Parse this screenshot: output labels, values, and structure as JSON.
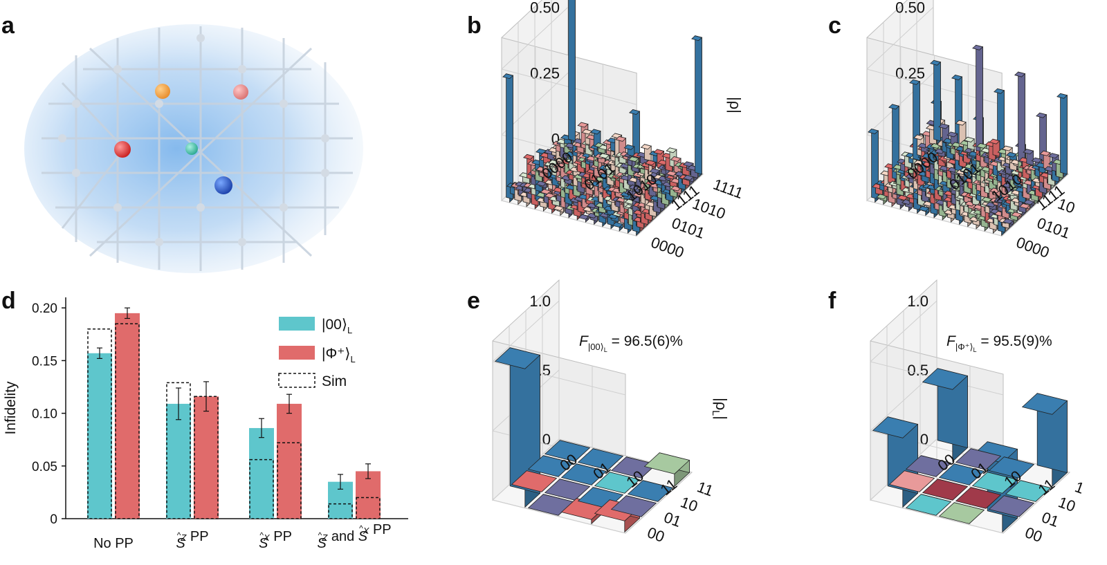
{
  "panels": {
    "a": {
      "label": "a"
    },
    "b": {
      "label": "b"
    },
    "c": {
      "label": "c"
    },
    "d": {
      "label": "d"
    },
    "e": {
      "label": "e"
    },
    "f": {
      "label": "f"
    }
  },
  "colors": {
    "teal": "#5ec6cc",
    "red": "#e06b6b",
    "blue": "#3a7eb0",
    "green": "#a7c9a0",
    "salmon": "#e89a9a",
    "purple": "#6f6f9f",
    "darkred": "#a03a4a",
    "grid": "#cfcfcf"
  },
  "matrix3d": {
    "b": {
      "zticks": [
        "0",
        "0.25",
        "0.50"
      ],
      "zlabel": "|ρ|",
      "row_ticks": [
        "0000",
        "0101",
        "1010",
        "1111"
      ],
      "col_ticks": [
        "1111",
        "1010",
        "0101",
        "0000"
      ]
    },
    "c": {
      "zticks": [
        "0",
        "0.25",
        "0.50"
      ],
      "row_ticks": [
        "0000",
        "0101",
        "1010",
        "1111"
      ],
      "col_ticks": [
        "10",
        "0101",
        "0000"
      ]
    },
    "e": {
      "zticks": [
        "0",
        "0.5",
        "1.0"
      ],
      "zlabel": "|ρ",
      "zlabel_sub": "L",
      "zlabel_end": "|",
      "row_ticks": [
        "00",
        "01",
        "10",
        "11"
      ],
      "col_ticks": [
        "11",
        "10",
        "01",
        "00"
      ],
      "fidelity_F": "F",
      "fidelity_sub": "|00⟩",
      "fidelity_sub2": "L",
      "fidelity_value": " = 96.5(6)%"
    },
    "f": {
      "zticks": [
        "0",
        "0.5",
        "1.0"
      ],
      "row_ticks": [
        "00",
        "01",
        "10",
        "11"
      ],
      "col_ticks": [
        "1",
        "10",
        "01",
        "00"
      ],
      "fidelity_F": "F",
      "fidelity_sub": "|Φ⁺⟩",
      "fidelity_sub2": "L",
      "fidelity_value": " = 95.5(9)%"
    }
  },
  "chart_data": {
    "type": "bar",
    "title": "",
    "xlabel": "",
    "ylabel": "Infidelity",
    "ylim": [
      0,
      0.21
    ],
    "yticks": [
      "0",
      "0.05",
      "0.10",
      "0.15",
      "0.20"
    ],
    "ytick_values": [
      0,
      0.05,
      0.1,
      0.15,
      0.2
    ],
    "categories": [
      "No PP",
      "Ŝ",
      "Ŝ",
      "Ŝ"
    ],
    "category_parts": [
      {
        "pre": "No PP"
      },
      {
        "op": "S",
        "sup": "Z",
        "post": " PP"
      },
      {
        "op": "S",
        "sup": "X",
        "post": " PP"
      },
      {
        "op": "S",
        "sup": "Z",
        "mid": " and ",
        "op2": "S",
        "sup2": "X",
        "post": " PP"
      }
    ],
    "series": [
      {
        "name": "|00⟩L",
        "values": [
          0.157,
          0.109,
          0.086,
          0.035
        ],
        "errors": [
          0.005,
          0.015,
          0.009,
          0.007
        ],
        "sim": [
          0.18,
          0.129,
          0.056,
          0.014
        ]
      },
      {
        "name": "|Φ⁺⟩L",
        "values": [
          0.195,
          0.116,
          0.109,
          0.045
        ],
        "errors": [
          0.005,
          0.014,
          0.009,
          0.007
        ],
        "sim": [
          0.185,
          0.116,
          0.072,
          0.02
        ]
      }
    ],
    "legend": [
      {
        "label": "|00⟩",
        "sub": "L"
      },
      {
        "label": "|Φ⁺⟩",
        "sub": "L"
      },
      {
        "label": "Sim"
      }
    ],
    "legend_position": "top-right"
  }
}
